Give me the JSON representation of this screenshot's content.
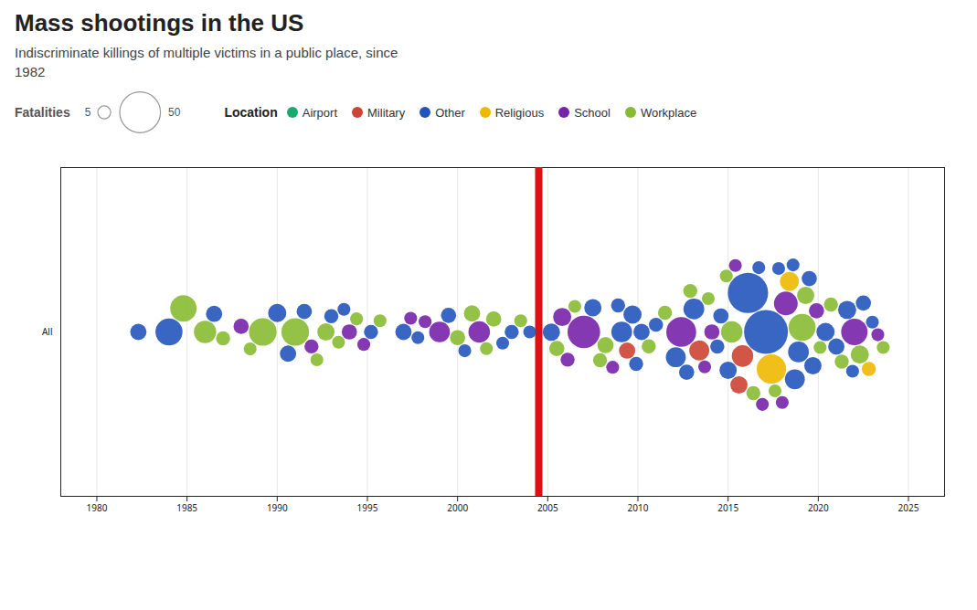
{
  "chart_data": {
    "type": "bubble",
    "title": "Mass shootings in the US",
    "subtitle": "Indiscriminate killings of multiple victims in a public place, since\n1982",
    "categories": [
      "All"
    ],
    "xlim": [
      1978,
      2027
    ],
    "xticks": [
      1980,
      1985,
      1990,
      1995,
      2000,
      2005,
      2010,
      2015,
      2020,
      2025
    ],
    "grid": true,
    "legend": "top",
    "legend_title": "Location",
    "series": [
      {
        "name": "Airport",
        "color": "#1aaa6e"
      },
      {
        "name": "Military",
        "color": "#cc4433"
      },
      {
        "name": "Other",
        "color": "#2255bb"
      },
      {
        "name": "Religious",
        "color": "#f0b800"
      },
      {
        "name": "School",
        "color": "#7722aa"
      },
      {
        "name": "Workplace",
        "color": "#88bb33"
      }
    ],
    "size_legend": {
      "title": "Fatalities",
      "values": [
        5,
        50
      ]
    },
    "rules": [
      {
        "x": 2004.5,
        "color": "#dd1111"
      }
    ],
    "x": [
      1982.3,
      1984.0,
      1984.8,
      1986.0,
      1986.5,
      1987.0,
      1988.0,
      1988.5,
      1989.2,
      1990.0,
      1990.6,
      1991.0,
      1991.5,
      1991.9,
      1992.2,
      1992.7,
      1993.0,
      1993.4,
      1993.7,
      1994.0,
      1994.4,
      1994.8,
      1995.2,
      1995.7,
      1997.0,
      1997.4,
      1997.8,
      1998.2,
      1999.0,
      1999.5,
      2000.0,
      2000.4,
      2000.8,
      2001.2,
      2001.6,
      2002.0,
      2002.5,
      2003.0,
      2003.5,
      2004.0,
      2005.2,
      2005.5,
      2005.8,
      2006.1,
      2006.5,
      2007.0,
      2007.5,
      2007.9,
      2008.2,
      2008.6,
      2008.9,
      2009.1,
      2009.4,
      2009.7,
      2009.9,
      2010.2,
      2010.6,
      2011.0,
      2011.5,
      2012.1,
      2012.4,
      2012.7,
      2012.9,
      2013.1,
      2013.4,
      2013.7,
      2013.9,
      2014.1,
      2014.4,
      2014.6,
      2014.9,
      2015.0,
      2015.2,
      2015.4,
      2015.6,
      2015.8,
      2016.1,
      2016.4,
      2016.7,
      2016.9,
      2017.1,
      2017.4,
      2017.6,
      2017.8,
      2018.0,
      2018.2,
      2018.4,
      2018.6,
      2018.7,
      2018.9,
      2019.1,
      2019.3,
      2019.5,
      2019.7,
      2019.9,
      2020.1,
      2020.4,
      2020.7,
      2021.0,
      2021.3,
      2021.6,
      2021.9,
      2022.0,
      2022.3,
      2022.5,
      2022.8,
      2023.0,
      2023.3,
      2023.6
    ],
    "sizes": [
      8,
      22,
      21,
      15,
      8,
      6,
      7,
      5,
      23,
      10,
      8,
      23,
      7,
      6,
      5,
      9,
      6,
      5,
      5,
      7,
      5,
      5,
      6,
      5,
      8,
      5,
      5,
      5,
      13,
      7,
      7,
      5,
      8,
      14,
      5,
      7,
      5,
      6,
      5,
      5,
      9,
      7,
      10,
      6,
      5,
      32,
      9,
      6,
      8,
      5,
      6,
      13,
      8,
      10,
      6,
      8,
      6,
      6,
      6,
      12,
      27,
      7,
      6,
      13,
      12,
      5,
      5,
      7,
      6,
      7,
      5,
      9,
      14,
      5,
      9,
      14,
      49,
      6,
      5,
      5,
      58,
      26,
      5,
      5,
      5,
      17,
      11,
      5,
      12,
      13,
      22,
      9,
      7,
      9,
      7,
      5,
      10,
      6,
      8,
      6,
      10,
      5,
      21,
      10,
      7,
      6,
      5,
      5,
      5
    ],
    "groups": [
      "Other",
      "Other",
      "Workplace",
      "Workplace",
      "Other",
      "Workplace",
      "School",
      "Workplace",
      "Workplace",
      "Other",
      "Other",
      "Workplace",
      "Other",
      "School",
      "Workplace",
      "Workplace",
      "Other",
      "Workplace",
      "Other",
      "School",
      "Workplace",
      "School",
      "Other",
      "Workplace",
      "Other",
      "School",
      "Other",
      "School",
      "School",
      "Other",
      "Workplace",
      "Other",
      "Workplace",
      "School",
      "Workplace",
      "Workplace",
      "Other",
      "Other",
      "Workplace",
      "Other",
      "Other",
      "Workplace",
      "School",
      "School",
      "Workplace",
      "School",
      "Other",
      "Workplace",
      "Workplace",
      "School",
      "Other",
      "Other",
      "Military",
      "Other",
      "Other",
      "Other",
      "Workplace",
      "Other",
      "Workplace",
      "Other",
      "School",
      "Other",
      "Workplace",
      "Other",
      "Military",
      "School",
      "Workplace",
      "School",
      "Other",
      "Other",
      "Workplace",
      "Other",
      "Workplace",
      "School",
      "Military",
      "Military",
      "Other",
      "Workplace",
      "Other",
      "School",
      "Other",
      "Religious",
      "Workplace",
      "Other",
      "School",
      "School",
      "Religious",
      "Other",
      "Other",
      "Other",
      "Workplace",
      "Workplace",
      "Other",
      "Other",
      "School",
      "Workplace",
      "Other",
      "Workplace",
      "Other",
      "Workplace",
      "Other",
      "Other",
      "School",
      "Workplace",
      "Other",
      "Religious",
      "Other",
      "School",
      "Workplace"
    ]
  }
}
